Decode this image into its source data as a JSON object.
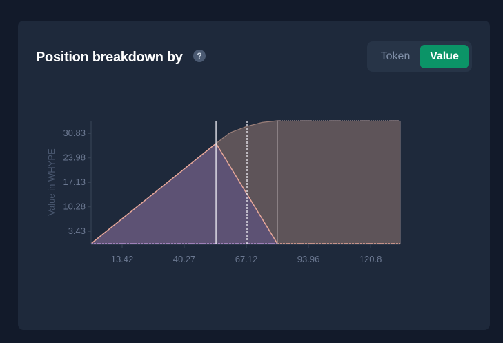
{
  "header": {
    "title": "Position breakdown by",
    "help_icon": "question-circle-icon",
    "help_label": "?"
  },
  "toggle": {
    "options": [
      "Token",
      "Value"
    ],
    "selected": "Value"
  },
  "colors": {
    "accent": "#0b9467",
    "token_area": "#5d5274",
    "value_area": "#5e5459",
    "line": "#e8a89a"
  },
  "chart_data": {
    "type": "area",
    "ylabel": "Value in WHYPE",
    "xlabel": "",
    "x_ticks": [
      13.42,
      40.27,
      67.12,
      93.96,
      120.8
    ],
    "y_ticks": [
      3.43,
      10.28,
      17.13,
      23.98,
      30.83
    ],
    "xlim": [
      0,
      133.6
    ],
    "ylim": [
      0,
      34.35
    ],
    "series": [
      {
        "points": [
          [
            0,
            0
          ],
          [
            54,
            28
          ],
          [
            60,
            31
          ],
          [
            67.4,
            32.8
          ],
          [
            74,
            33.9
          ],
          [
            80.5,
            34.35
          ],
          [
            133.6,
            34.35
          ]
        ]
      },
      {
        "points": [
          [
            0,
            0
          ],
          [
            54,
            28
          ],
          [
            80.5,
            0
          ],
          [
            133.6,
            0
          ]
        ]
      }
    ],
    "vertical_lines": [
      {
        "x": 54,
        "style": "solid"
      },
      {
        "x": 67.4,
        "style": "dashed"
      },
      {
        "x": 80.5,
        "style": "solid"
      }
    ],
    "grid": false
  }
}
